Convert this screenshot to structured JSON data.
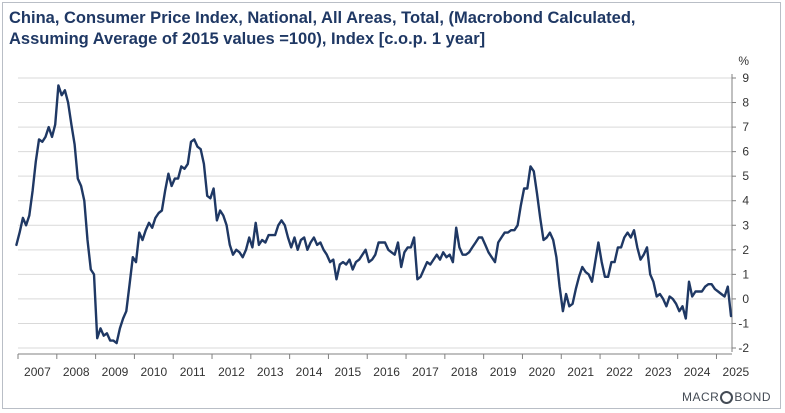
{
  "title": {
    "line1": "China, Consumer Price Index, National, All Areas, Total, (Macrobond Calculated,",
    "line2": "Assuming Average of 2015 values =100), Index [c.o.p. 1 year]"
  },
  "logo": {
    "pre": "MACR",
    "post": "BOND"
  },
  "chart_data": {
    "type": "line",
    "title": "China, Consumer Price Index, National, All Areas, Total, (Macrobond Calculated, Assuming Average of 2015 values =100), Index [c.o.p. 1 year]",
    "unit": "%",
    "ylim": [
      -2,
      9
    ],
    "yticks": [
      -2,
      -1,
      0,
      1,
      2,
      3,
      4,
      5,
      6,
      7,
      8,
      9
    ],
    "xlim": [
      2007,
      2025.4
    ],
    "xticks": [
      "2007",
      "2008",
      "2009",
      "2010",
      "2011",
      "2012",
      "2013",
      "2014",
      "2015",
      "2016",
      "2017",
      "2018",
      "2019",
      "2020",
      "2021",
      "2022",
      "2023",
      "2024",
      "2025"
    ],
    "y_axis_position": "right",
    "grid": "horizontal",
    "legend": "none",
    "color": "#1f3864",
    "series": [
      {
        "start": "2006-12",
        "frequency": "monthly",
        "values": [
          2.2,
          2.7,
          3.3,
          3.0,
          3.4,
          4.4,
          5.6,
          6.5,
          6.4,
          6.6,
          7.0,
          6.6,
          7.1,
          8.7,
          8.3,
          8.5,
          8.0,
          7.1,
          6.3,
          4.9,
          4.6,
          4.0,
          2.4,
          1.2,
          1.0,
          -1.6,
          -1.2,
          -1.5,
          -1.4,
          -1.7,
          -1.7,
          -1.8,
          -1.2,
          -0.8,
          -0.5,
          0.6,
          1.7,
          1.5,
          2.7,
          2.4,
          2.8,
          3.1,
          2.9,
          3.3,
          3.5,
          3.6,
          4.4,
          5.1,
          4.6,
          4.9,
          4.9,
          5.4,
          5.3,
          5.5,
          6.4,
          6.5,
          6.2,
          6.1,
          5.5,
          4.2,
          4.1,
          4.5,
          3.2,
          3.6,
          3.4,
          3.0,
          2.2,
          1.8,
          2.0,
          1.9,
          1.7,
          2.0,
          2.5,
          2.1,
          3.1,
          2.2,
          2.4,
          2.3,
          2.6,
          2.6,
          2.6,
          3.0,
          3.2,
          3.0,
          2.5,
          2.1,
          2.5,
          2.0,
          2.4,
          2.5,
          2.0,
          2.3,
          2.5,
          2.2,
          2.3,
          2.0,
          1.8,
          1.5,
          1.6,
          0.8,
          1.4,
          1.5,
          1.4,
          1.6,
          1.2,
          1.5,
          1.6,
          1.8,
          2.0,
          1.5,
          1.6,
          1.8,
          2.3,
          2.3,
          2.3,
          2.0,
          1.9,
          1.8,
          2.3,
          1.3,
          1.9,
          2.1,
          2.1,
          2.5,
          0.8,
          0.9,
          1.2,
          1.5,
          1.4,
          1.6,
          1.8,
          1.6,
          1.9,
          1.7,
          1.8,
          1.5,
          2.9,
          2.1,
          1.8,
          1.8,
          1.9,
          2.1,
          2.3,
          2.5,
          2.5,
          2.2,
          1.9,
          1.7,
          1.5,
          2.3,
          2.5,
          2.7,
          2.7,
          2.8,
          2.8,
          3.0,
          3.8,
          4.5,
          4.5,
          5.4,
          5.2,
          4.3,
          3.3,
          2.4,
          2.5,
          2.7,
          2.4,
          1.7,
          0.5,
          -0.5,
          0.2,
          -0.3,
          -0.2,
          0.4,
          0.9,
          1.3,
          1.1,
          1.0,
          0.7,
          1.5,
          2.3,
          1.5,
          0.9,
          0.9,
          1.5,
          1.5,
          2.1,
          2.1,
          2.5,
          2.7,
          2.5,
          2.8,
          2.1,
          1.6,
          1.8,
          2.1,
          1.0,
          0.7,
          0.1,
          0.2,
          0.0,
          -0.3,
          0.1,
          0.0,
          -0.2,
          -0.5,
          -0.3,
          -0.8,
          0.7,
          0.1,
          0.3,
          0.3,
          0.3,
          0.5,
          0.6,
          0.6,
          0.4,
          0.3,
          0.2,
          0.1,
          0.5,
          -0.7
        ]
      }
    ]
  }
}
